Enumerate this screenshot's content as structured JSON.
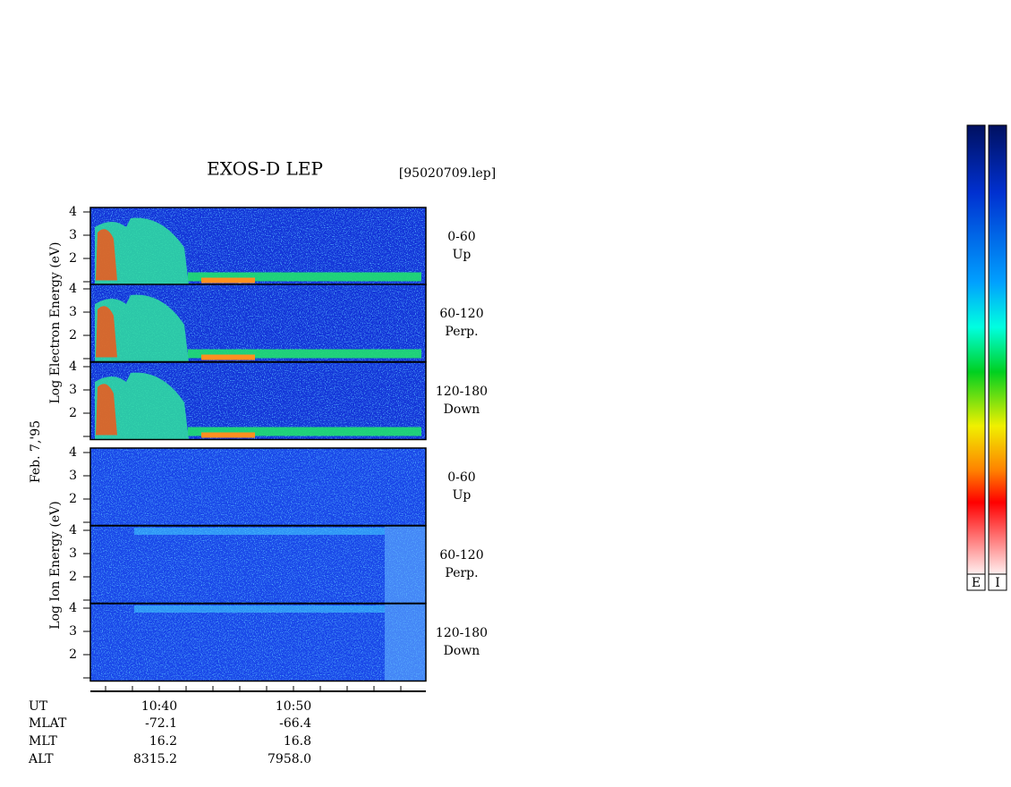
{
  "header": {
    "title": "EXOS-D LEP",
    "file": "[95020709.lep]"
  },
  "date": "Feb. 7,'95",
  "energy_ticks": [
    4,
    3,
    2
  ],
  "electron": {
    "axis_label": "Log  Electron  Energy (eV)",
    "panels": [
      {
        "range": "0-60",
        "direction": "Up"
      },
      {
        "range": "60-120",
        "direction": "Perp."
      },
      {
        "range": "120-180",
        "direction": "Down"
      }
    ]
  },
  "ion": {
    "axis_label": "Log  Ion  Energy (eV)",
    "panels": [
      {
        "range": "0-60",
        "direction": "Up"
      },
      {
        "range": "60-120",
        "direction": "Perp."
      },
      {
        "range": "120-180",
        "direction": "Down"
      }
    ]
  },
  "ephemeris": {
    "rows": [
      {
        "label": "UT",
        "values": [
          "10:40",
          "10:50"
        ]
      },
      {
        "label": "MLAT",
        "values": [
          "-72.1",
          "-66.4"
        ]
      },
      {
        "label": "MLT",
        "values": [
          "16.2",
          "16.8"
        ]
      },
      {
        "label": "ALT",
        "values": [
          "8315.2",
          "7958.0"
        ]
      }
    ]
  },
  "colorbars": [
    "E",
    "I"
  ]
}
